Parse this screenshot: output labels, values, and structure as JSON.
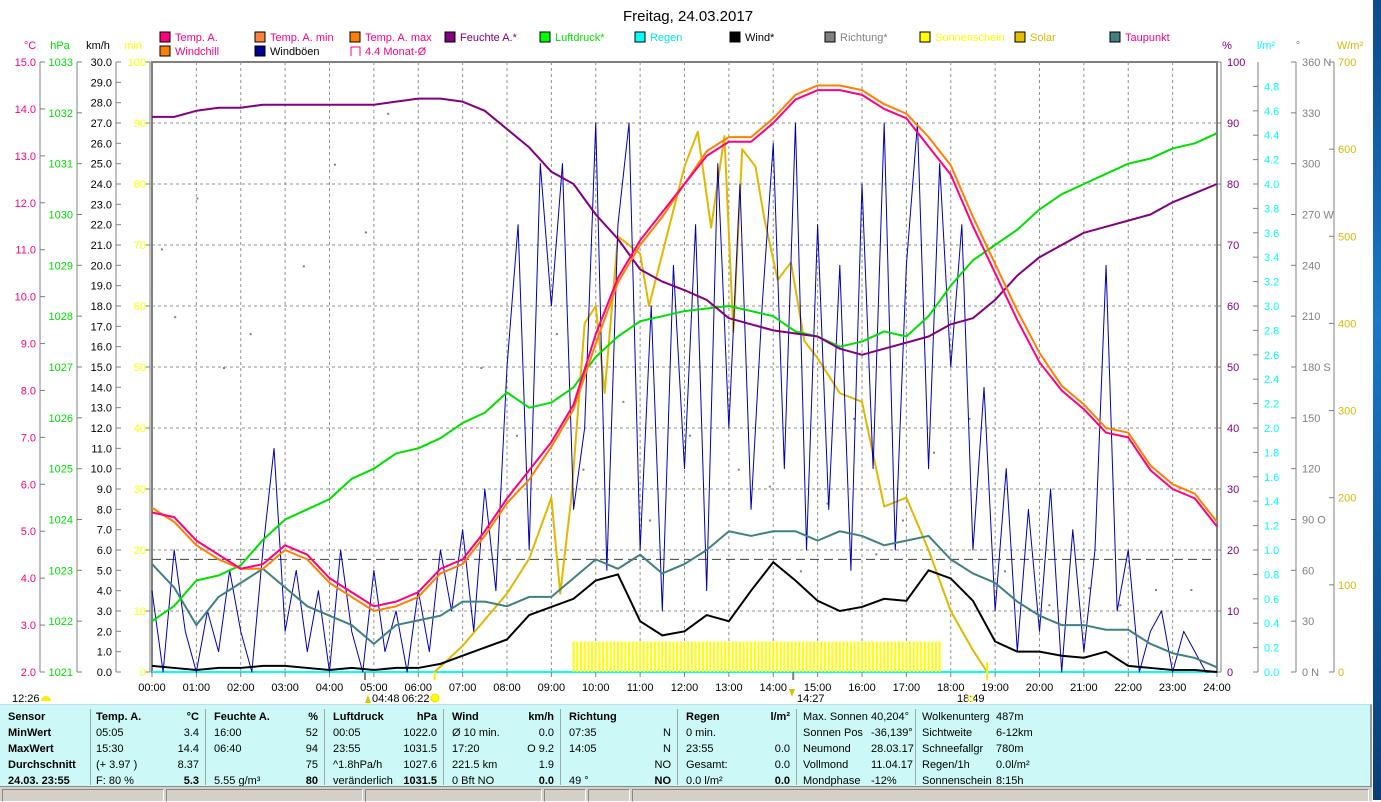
{
  "title": "Freitag, 24.03.2017",
  "legend": [
    {
      "label": "Temp. A.",
      "color": "#ff0080",
      "text": "#ff0080"
    },
    {
      "label": "Temp. A. min",
      "color": "#ff8040",
      "text": "#ff0080"
    },
    {
      "label": "Temp. A. max",
      "color": "#ff8000",
      "text": "#ff0080"
    },
    {
      "label": "Feuchte A.*",
      "color": "#800080",
      "text": "#800080"
    },
    {
      "label": "Luftdruck*",
      "color": "#00ff00",
      "text": "#00e000"
    },
    {
      "label": "Regen",
      "color": "#00ffff",
      "text": "#00e8e8"
    },
    {
      "label": "Wind*",
      "color": "#000000",
      "text": "#000000"
    },
    {
      "label": "Richtung*",
      "color": "#808080",
      "text": "#808080"
    },
    {
      "label": "Sonnenschein",
      "color": "#ffff00",
      "text": "#ffff00"
    },
    {
      "label": "Solar",
      "color": "#e0c000",
      "text": "#d8b800"
    },
    {
      "label": "Taupunkt",
      "color": "#408080",
      "text": "#ff0080"
    },
    {
      "label": "Windchill",
      "color": "#ff8000",
      "text": "#ff0080"
    },
    {
      "label": "Windböen",
      "color": "#000090",
      "text": "#000000"
    },
    {
      "label": "4.4 Monat-Ø",
      "color": "none",
      "text": "#ff0080"
    }
  ],
  "chart_data": {
    "type": "line",
    "title": "Freitag, 24.03.2017",
    "x_range": [
      0,
      24
    ],
    "x_ticks": [
      "00:00",
      "01:00",
      "02:00",
      "03:00",
      "04:00",
      "05:00",
      "06:00",
      "07:00",
      "08:00",
      "09:00",
      "10:00",
      "11:00",
      "12:00",
      "13:00",
      "14:00",
      "15:00",
      "16:00",
      "17:00",
      "18:00",
      "19:00",
      "20:00",
      "21:00",
      "22:00",
      "23:00",
      "24:00"
    ],
    "axes": {
      "temp": {
        "unit": "°C",
        "min": 2,
        "max": 15,
        "step": 1,
        "decimals": 1,
        "color": "#ff0080"
      },
      "press": {
        "unit": "hPa",
        "min": 1021,
        "max": 1033,
        "step": 1,
        "decimals": 0,
        "color": "#00e000"
      },
      "wind": {
        "unit": "km/h",
        "min": 0,
        "max": 30,
        "step": 1,
        "decimals": 1,
        "color": "#000000"
      },
      "min": {
        "unit": "min",
        "min": 0,
        "max": 100,
        "step": 10,
        "decimals": 0,
        "color": "#ffff00"
      },
      "hum": {
        "unit": "%",
        "min": 0,
        "max": 100,
        "step": 10,
        "decimals": 0,
        "color": "#800080"
      },
      "rain": {
        "unit": "l/m²",
        "min": 0,
        "max": 5,
        "step": 0.2,
        "decimals": 1,
        "labelmax": 4.8,
        "color": "#00ffff"
      },
      "dir": {
        "unit": "°",
        "min": 0,
        "max": 360,
        "step": 30,
        "decimals": 0,
        "color": "#808080",
        "compass": {
          "0": "N",
          "90": "O",
          "180": "S",
          "270": "W",
          "360": "N"
        }
      },
      "solar": {
        "unit": "W/m²",
        "min": 0,
        "max": 700,
        "step": 100,
        "decimals": 0,
        "color": "#d8b800"
      }
    },
    "monthly_avg_temp": 4.4,
    "series": [
      {
        "name": "Temp. A.",
        "axis": "temp",
        "color": "#ff0080",
        "step": 0.5,
        "values": [
          5.4,
          5.3,
          4.8,
          4.5,
          4.2,
          4.3,
          4.7,
          4.5,
          4.0,
          3.7,
          3.4,
          3.5,
          3.7,
          4.2,
          4.4,
          5.0,
          5.7,
          6.3,
          6.9,
          7.7,
          9.2,
          10.4,
          11.2,
          11.8,
          12.4,
          13.0,
          13.3,
          13.3,
          13.7,
          14.2,
          14.4,
          14.4,
          14.3,
          14.0,
          13.8,
          13.2,
          12.6,
          11.5,
          10.5,
          9.5,
          8.6,
          8.0,
          7.6,
          7.1,
          7.0,
          6.3,
          5.9,
          5.7,
          5.1
        ]
      },
      {
        "name": "Windchill",
        "axis": "temp",
        "color": "#ff8000",
        "step": 0.5,
        "values": [
          5.5,
          5.2,
          4.7,
          4.4,
          4.2,
          4.2,
          4.6,
          4.4,
          3.9,
          3.6,
          3.3,
          3.4,
          3.6,
          4.1,
          4.3,
          4.9,
          5.6,
          6.1,
          6.8,
          7.6,
          9.0,
          10.3,
          11.1,
          11.7,
          12.4,
          13.1,
          13.4,
          13.4,
          13.8,
          14.3,
          14.5,
          14.5,
          14.4,
          14.1,
          13.9,
          13.4,
          12.8,
          11.7,
          10.7,
          9.7,
          8.8,
          8.1,
          7.7,
          7.2,
          7.1,
          6.4,
          6.0,
          5.8,
          5.2
        ]
      },
      {
        "name": "Luftdruck*",
        "axis": "press",
        "color": "#00e000",
        "step": 0.5,
        "values": [
          1022.0,
          1022.3,
          1022.8,
          1022.9,
          1023.1,
          1023.6,
          1024.0,
          1024.2,
          1024.4,
          1024.8,
          1025.0,
          1025.3,
          1025.4,
          1025.6,
          1025.9,
          1026.1,
          1026.5,
          1026.2,
          1026.3,
          1026.6,
          1027.2,
          1027.6,
          1027.9,
          1028.0,
          1028.1,
          1028.15,
          1028.2,
          1028.1,
          1028.0,
          1027.7,
          1027.6,
          1027.4,
          1027.5,
          1027.7,
          1027.6,
          1028.0,
          1028.6,
          1029.1,
          1029.4,
          1029.7,
          1030.1,
          1030.4,
          1030.6,
          1030.8,
          1031.0,
          1031.1,
          1031.3,
          1031.4,
          1031.6
        ]
      },
      {
        "name": "Feuchte A.*",
        "axis": "hum",
        "color": "#800080",
        "step": 0.5,
        "values": [
          91,
          91,
          92,
          92.5,
          92.5,
          93,
          93,
          93,
          93,
          93,
          93,
          93.5,
          94,
          94,
          93.5,
          92,
          89,
          86,
          82,
          80,
          75,
          71,
          66,
          64,
          62.6,
          61,
          58,
          57,
          56,
          55.5,
          55,
          53,
          52,
          53,
          54,
          55,
          57,
          58,
          61,
          65,
          68,
          70,
          72,
          73,
          74,
          75,
          77,
          78.5,
          80
        ]
      },
      {
        "name": "Taupunkt",
        "axis": "temp",
        "color": "#408080",
        "step": 0.5,
        "values": [
          4.3,
          3.8,
          3.0,
          3.6,
          3.9,
          4.2,
          3.8,
          3.4,
          3.2,
          3.0,
          2.6,
          3.0,
          3.1,
          3.2,
          3.5,
          3.5,
          3.4,
          3.6,
          3.6,
          4.0,
          4.4,
          4.2,
          4.5,
          4.1,
          4.3,
          4.6,
          5.0,
          4.9,
          5.0,
          5.0,
          4.8,
          5.0,
          4.9,
          4.7,
          4.8,
          4.9,
          4.4,
          4.1,
          3.9,
          3.5,
          3.2,
          3.0,
          3.0,
          2.9,
          2.9,
          2.6,
          2.4,
          2.3,
          2.1
        ]
      },
      {
        "name": "Wind*",
        "axis": "wind",
        "color": "#000000",
        "step": 0.5,
        "values": [
          0.3,
          0.2,
          0.1,
          0.2,
          0.2,
          0.3,
          0.3,
          0.2,
          0.1,
          0.2,
          0.1,
          0.2,
          0.2,
          0.4,
          0.8,
          1.2,
          1.6,
          2.8,
          3.2,
          3.6,
          4.5,
          4.8,
          2.5,
          1.8,
          2.0,
          2.8,
          2.5,
          4.0,
          5.4,
          4.5,
          3.5,
          3.0,
          3.2,
          3.6,
          3.5,
          5.0,
          4.6,
          3.5,
          1.5,
          1.0,
          1.0,
          0.8,
          0.7,
          1.0,
          0.3,
          0.2,
          0.1,
          0.1,
          0.0
        ]
      },
      {
        "name": "Windböen",
        "axis": "wind",
        "color": "#0000b0",
        "step": 0.25,
        "values": [
          4,
          0,
          6,
          2,
          0,
          3,
          1,
          5,
          2,
          0,
          6,
          11,
          2,
          5,
          1,
          4,
          0,
          6,
          2,
          0,
          5,
          1,
          3,
          0,
          4,
          1,
          6,
          3,
          7,
          2,
          9,
          4,
          15,
          22,
          6,
          25,
          18,
          25,
          8,
          12,
          27,
          5,
          22,
          27,
          6,
          18,
          3,
          20,
          10,
          22,
          4,
          25,
          12,
          24,
          8,
          18,
          26,
          10,
          27,
          6,
          22,
          8,
          20,
          5,
          24,
          10,
          27,
          6,
          20,
          27,
          10,
          25,
          15,
          22,
          6,
          14,
          3,
          10,
          1,
          8,
          2,
          9,
          0,
          7,
          1,
          6,
          20,
          3,
          6,
          0,
          2,
          3,
          0,
          2,
          1,
          0,
          0
        ]
      },
      {
        "name": "Solar",
        "axis": "solar",
        "color": "#e0b800",
        "points": [
          [
            6.37,
            0
          ],
          [
            7.0,
            30
          ],
          [
            7.5,
            60
          ],
          [
            8.0,
            90
          ],
          [
            8.5,
            130
          ],
          [
            9.0,
            200
          ],
          [
            9.2,
            90
          ],
          [
            9.45,
            200
          ],
          [
            9.75,
            400
          ],
          [
            10.0,
            420
          ],
          [
            10.2,
            320
          ],
          [
            10.5,
            500
          ],
          [
            11.0,
            480
          ],
          [
            11.2,
            420
          ],
          [
            11.5,
            480
          ],
          [
            12.0,
            580
          ],
          [
            12.3,
            620
          ],
          [
            12.6,
            510
          ],
          [
            12.9,
            615
          ],
          [
            13.1,
            390
          ],
          [
            13.3,
            600
          ],
          [
            13.6,
            580
          ],
          [
            13.8,
            520
          ],
          [
            14.1,
            450
          ],
          [
            14.4,
            470
          ],
          [
            14.7,
            380
          ],
          [
            15.0,
            360
          ],
          [
            15.5,
            320
          ],
          [
            16.0,
            310
          ],
          [
            16.5,
            190
          ],
          [
            17.0,
            200
          ],
          [
            17.5,
            140
          ],
          [
            18.0,
            70
          ],
          [
            18.5,
            25
          ],
          [
            18.82,
            0
          ]
        ]
      }
    ],
    "sunshine": {
      "name": "Sonnenschein",
      "axis": "min",
      "color": "#ffff00",
      "start": 9.5,
      "end": 17.83,
      "value": 5
    },
    "direction_points": [
      [
        0.2,
        250
      ],
      [
        0.5,
        210
      ],
      [
        1.0,
        280
      ],
      [
        1.6,
        180
      ],
      [
        2.2,
        200
      ],
      [
        3.4,
        240
      ],
      [
        4.1,
        300
      ],
      [
        4.8,
        260
      ],
      [
        5.3,
        330
      ],
      [
        7.4,
        180
      ],
      [
        8.2,
        140
      ],
      [
        9.1,
        200
      ],
      [
        9.7,
        120
      ],
      [
        10.6,
        160
      ],
      [
        11.2,
        90
      ],
      [
        12.1,
        140
      ],
      [
        13.2,
        120
      ],
      [
        13.9,
        110
      ],
      [
        14.6,
        60
      ],
      [
        15.2,
        100
      ],
      [
        15.8,
        150
      ],
      [
        16.3,
        70
      ],
      [
        16.9,
        90
      ],
      [
        17.6,
        130
      ],
      [
        18.4,
        150
      ],
      [
        19.2,
        60
      ],
      [
        20.2,
        40
      ],
      [
        21.1,
        50
      ],
      [
        21.8,
        40
      ],
      [
        22.6,
        49
      ],
      [
        23.4,
        49
      ]
    ],
    "annotations": {
      "moonrise": "12:26",
      "dawn": "04:48",
      "sunrise": "06:22",
      "sun_max": "14:27",
      "sunset": "18:49"
    }
  },
  "table": {
    "cols": [
      {
        "head": [
          "Sensor",
          ""
        ],
        "rows": [
          [
            "MinWert",
            ""
          ],
          [
            "MaxWert",
            ""
          ],
          [
            "Durchschnitt",
            ""
          ],
          [
            "24.03. 23:55",
            ""
          ]
        ],
        "boldcol": true
      },
      {
        "head": [
          "Temp. A.",
          "°C"
        ],
        "rows": [
          [
            "05:05",
            "3.4"
          ],
          [
            "15:30",
            "14.4"
          ],
          [
            "(+ 3.97 )",
            "8.37"
          ],
          [
            "F: 80 %",
            "5.3"
          ]
        ]
      },
      {
        "head": [
          "Feuchte A.",
          "%"
        ],
        "rows": [
          [
            "16:00",
            "52"
          ],
          [
            "06:40",
            "94"
          ],
          [
            "",
            "75"
          ],
          [
            "5.55 g/m³",
            "80"
          ]
        ]
      },
      {
        "head": [
          "Luftdruck",
          "hPa"
        ],
        "rows": [
          [
            "00:05",
            "1022.0"
          ],
          [
            "23:55",
            "1031.5"
          ],
          [
            "^1.8hPa/h",
            "1027.6"
          ],
          [
            "veränderlich",
            "1031.5"
          ]
        ]
      },
      {
        "head": [
          "Wind",
          "km/h"
        ],
        "rows": [
          [
            "Ø 10 min.",
            "0.0"
          ],
          [
            "17:20",
            "O 9.2"
          ],
          [
            "221.5 km",
            "1.9"
          ],
          [
            "0 Bft NO",
            "0.0"
          ]
        ]
      },
      {
        "head": [
          "Richtung",
          ""
        ],
        "rows": [
          [
            "07:35",
            "N"
          ],
          [
            "14:05",
            "N"
          ],
          [
            "",
            "NO"
          ],
          [
            "49 °",
            "NO"
          ]
        ]
      },
      {
        "head": [
          "Regen",
          "l/m²"
        ],
        "rows": [
          [
            "0 min.",
            ""
          ],
          [
            "23:55",
            "0.0"
          ],
          [
            "Gesamt:",
            "0.0"
          ],
          [
            "0.0 l/m²",
            "0.0"
          ]
        ]
      },
      {
        "head": [
          "Max. Sonnen",
          "40,204°"
        ],
        "rows": [
          [
            "Sonnen Pos",
            "-36,139°"
          ],
          [
            "Neumond",
            "28.03.17"
          ],
          [
            "Vollmond",
            "11.04.17"
          ],
          [
            "Mondphase",
            "-12%"
          ]
        ],
        "plain": true
      },
      {
        "head": [
          "Wolkenunterg",
          "487m"
        ],
        "rows": [
          [
            "Sichtweite",
            "6-12km"
          ],
          [
            "Schneefallgr",
            "780m"
          ],
          [
            "Regen/1h",
            "0.0l/m²"
          ],
          [
            "Sonnenschein",
            "8:15h"
          ]
        ],
        "plain": true
      }
    ]
  }
}
